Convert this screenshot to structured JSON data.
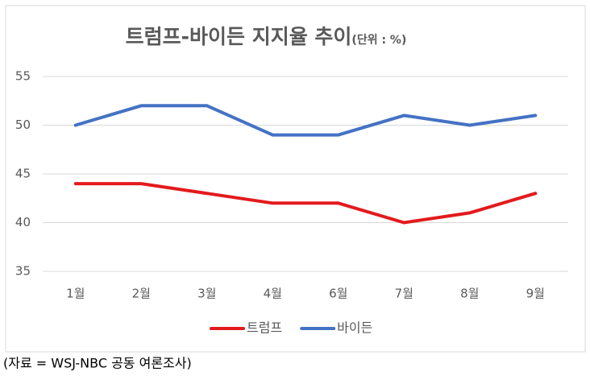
{
  "chart_data": {
    "type": "line",
    "title": "트럼프-바이든 지지율 추이",
    "subtitle": "(단위 : %)",
    "categories": [
      "1월",
      "2월",
      "3월",
      "4월",
      "6월",
      "7월",
      "8월",
      "9월"
    ],
    "series": [
      {
        "name": "트럼프",
        "color": "#e31a1c",
        "values": [
          44,
          44,
          43,
          42,
          42,
          40,
          41,
          43
        ]
      },
      {
        "name": "바이든",
        "color": "#4472c4",
        "values": [
          50,
          52,
          52,
          49,
          49,
          51,
          50,
          51
        ]
      }
    ],
    "ylim": [
      35,
      55
    ],
    "yticks": [
      35,
      40,
      45,
      50,
      55
    ],
    "grid": true,
    "legend": "bottom",
    "source": "(자료 = WSJ-NBC 공동 여론조사)"
  }
}
